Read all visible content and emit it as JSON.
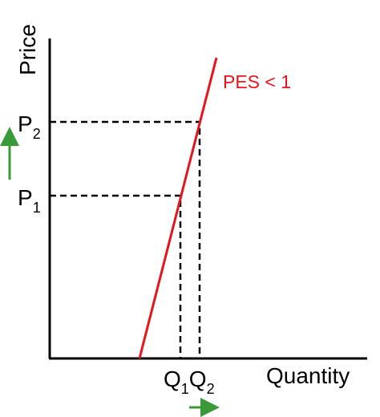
{
  "axes": {
    "y_label": "Price",
    "x_label": "Quantity"
  },
  "curve": {
    "label": "PES < 1"
  },
  "price_levels": [
    {
      "base": "P",
      "sub": "1"
    },
    {
      "base": "P",
      "sub": "2"
    }
  ],
  "quantity_levels": [
    {
      "base": "Q",
      "sub": "1"
    },
    {
      "base": "Q",
      "sub": "2"
    }
  ]
}
